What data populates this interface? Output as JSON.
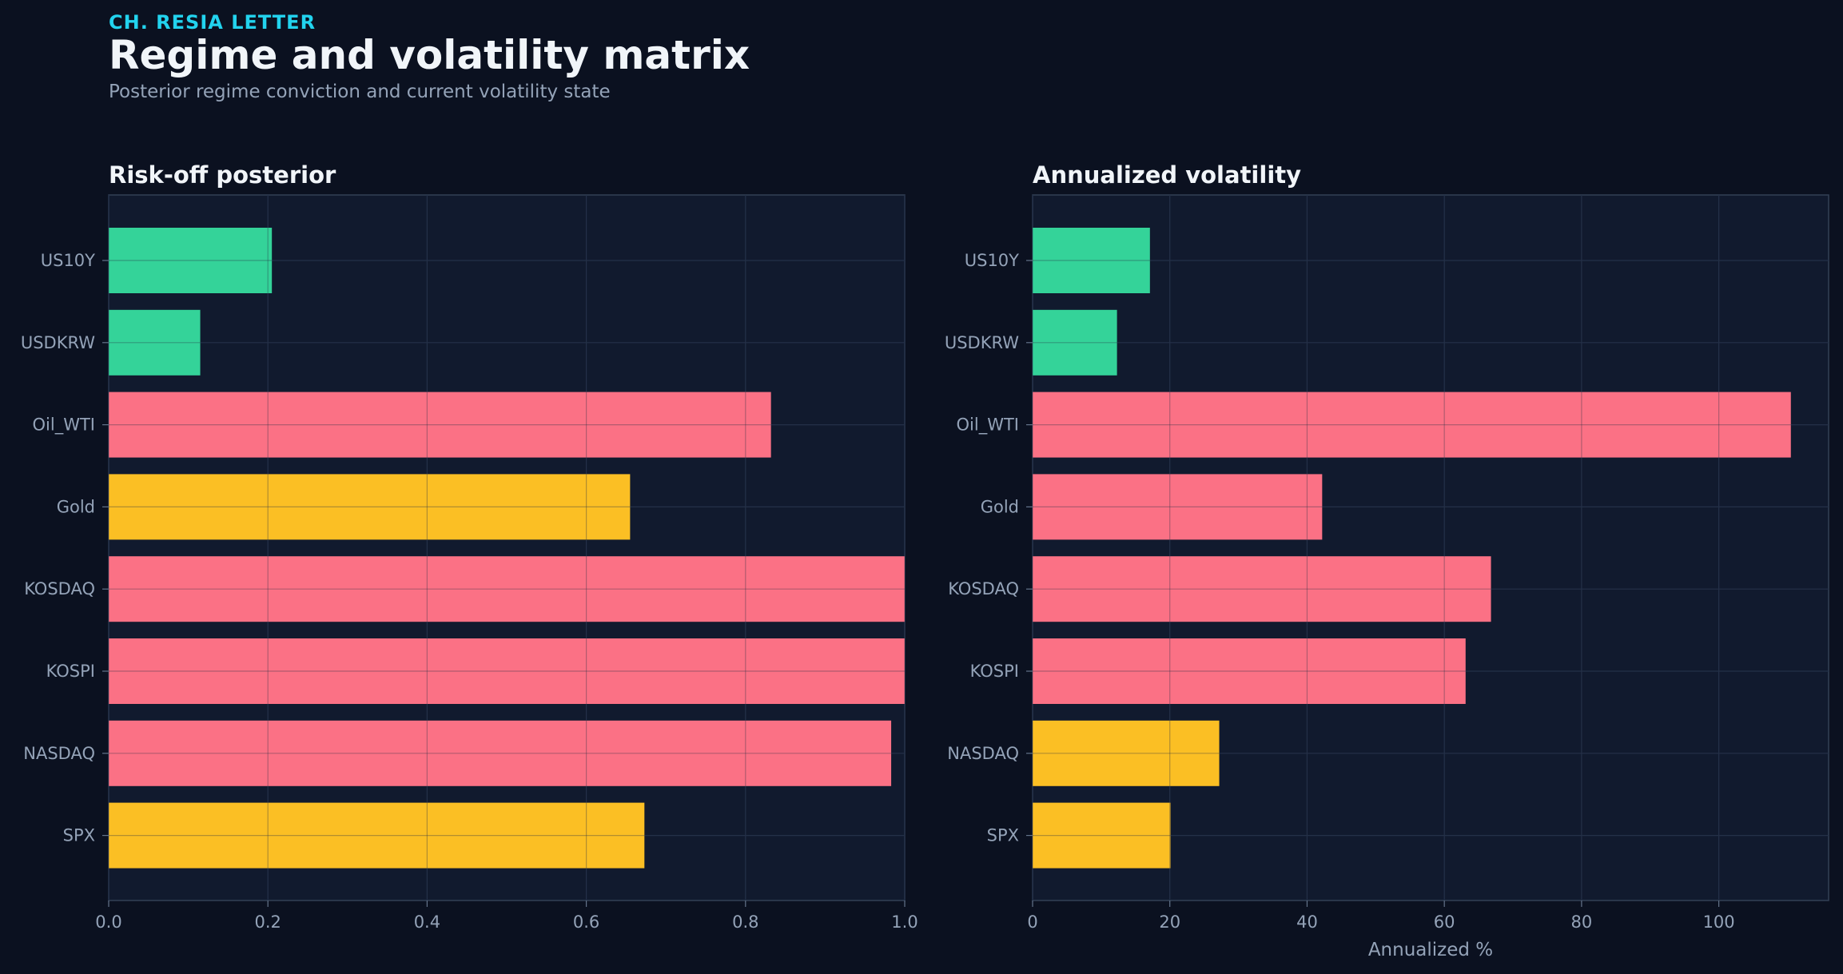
{
  "header": {
    "kicker": "CH. RESIA LETTER",
    "title": "Regime and volatility matrix",
    "subtitle": "Posterior regime conviction and current volatility state"
  },
  "colors": {
    "background": "#0b1120",
    "panel": "#111a2e",
    "green": "#34d399",
    "red": "#fb7185",
    "amber": "#fbbf24",
    "kicker": "#22d3ee"
  },
  "chart_data": [
    {
      "type": "bar",
      "orientation": "horizontal",
      "title": "Risk-off posterior",
      "xlabel": "",
      "ylabel": "",
      "xlim": [
        0,
        1.0
      ],
      "xticks": [
        "0.0",
        "0.2",
        "0.4",
        "0.6",
        "0.8",
        "1.0"
      ],
      "categories": [
        "US10Y",
        "USDKRW",
        "Oil_WTI",
        "Gold",
        "KOSDAQ",
        "KOSPI",
        "NASDAQ",
        "SPX"
      ],
      "values": [
        0.205,
        0.115,
        0.832,
        0.655,
        1.0,
        1.0,
        0.983,
        0.673
      ],
      "bar_colors": [
        "green",
        "green",
        "red",
        "amber",
        "red",
        "red",
        "red",
        "amber"
      ],
      "grid": true
    },
    {
      "type": "bar",
      "orientation": "horizontal",
      "title": "Annualized volatility",
      "xlabel": "Annualized %",
      "ylabel": "",
      "xlim": [
        0,
        116
      ],
      "xticks": [
        "0",
        "20",
        "40",
        "60",
        "80",
        "100"
      ],
      "categories": [
        "US10Y",
        "USDKRW",
        "Oil_WTI",
        "Gold",
        "KOSDAQ",
        "KOSPI",
        "NASDAQ",
        "SPX"
      ],
      "values": [
        17.1,
        12.3,
        110.5,
        42.2,
        66.8,
        63.1,
        27.2,
        20.1
      ],
      "bar_colors": [
        "green",
        "green",
        "red",
        "red",
        "red",
        "red",
        "amber",
        "amber"
      ],
      "grid": true
    }
  ]
}
